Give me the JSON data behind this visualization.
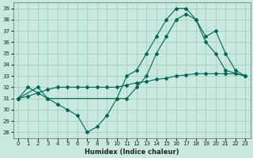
{
  "xlabel": "Humidex (Indice chaleur)",
  "background_color": "#c8e8e0",
  "grid_color": "#99ccbb",
  "line_color": "#006655",
  "xlim": [
    -0.5,
    23.5
  ],
  "ylim": [
    27.5,
    39.5
  ],
  "yticks": [
    28,
    29,
    30,
    31,
    32,
    33,
    34,
    35,
    36,
    37,
    38,
    39
  ],
  "xticks": [
    0,
    1,
    2,
    3,
    4,
    5,
    6,
    7,
    8,
    9,
    10,
    11,
    12,
    13,
    14,
    15,
    16,
    17,
    18,
    19,
    20,
    21,
    22,
    23
  ],
  "series": [
    {
      "x": [
        0,
        1,
        2,
        3,
        4,
        5,
        6,
        7,
        8,
        9,
        10,
        11,
        12,
        13,
        14,
        15,
        16,
        17,
        18,
        19,
        20,
        21,
        22,
        23
      ],
      "y": [
        31,
        32,
        31.5,
        31,
        30.5,
        30,
        29.5,
        28,
        28.5,
        29.5,
        31,
        31,
        32,
        33,
        35,
        36.5,
        38,
        38.5,
        38,
        36.5,
        37,
        35,
        33.5,
        33
      ]
    },
    {
      "x": [
        0,
        1,
        2,
        3,
        4,
        5,
        6,
        7,
        8,
        9,
        10,
        11,
        12,
        13,
        14,
        15,
        16,
        17,
        18,
        19,
        20,
        21,
        22,
        23
      ],
      "y": [
        31,
        31.2,
        31.5,
        31.8,
        32,
        32,
        32,
        32,
        32,
        32,
        32,
        32.2,
        32.4,
        32.5,
        32.7,
        32.8,
        33,
        33.1,
        33.2,
        33.2,
        33.2,
        33.2,
        33.2,
        33
      ]
    },
    {
      "x": [
        0,
        2,
        3,
        10,
        11,
        12,
        13,
        14,
        15,
        16,
        17,
        18,
        19,
        20,
        21,
        23
      ],
      "y": [
        31,
        32,
        31,
        31,
        33,
        33.5,
        35,
        36.5,
        38,
        39,
        39,
        38,
        36,
        35,
        33.5,
        33
      ]
    }
  ]
}
